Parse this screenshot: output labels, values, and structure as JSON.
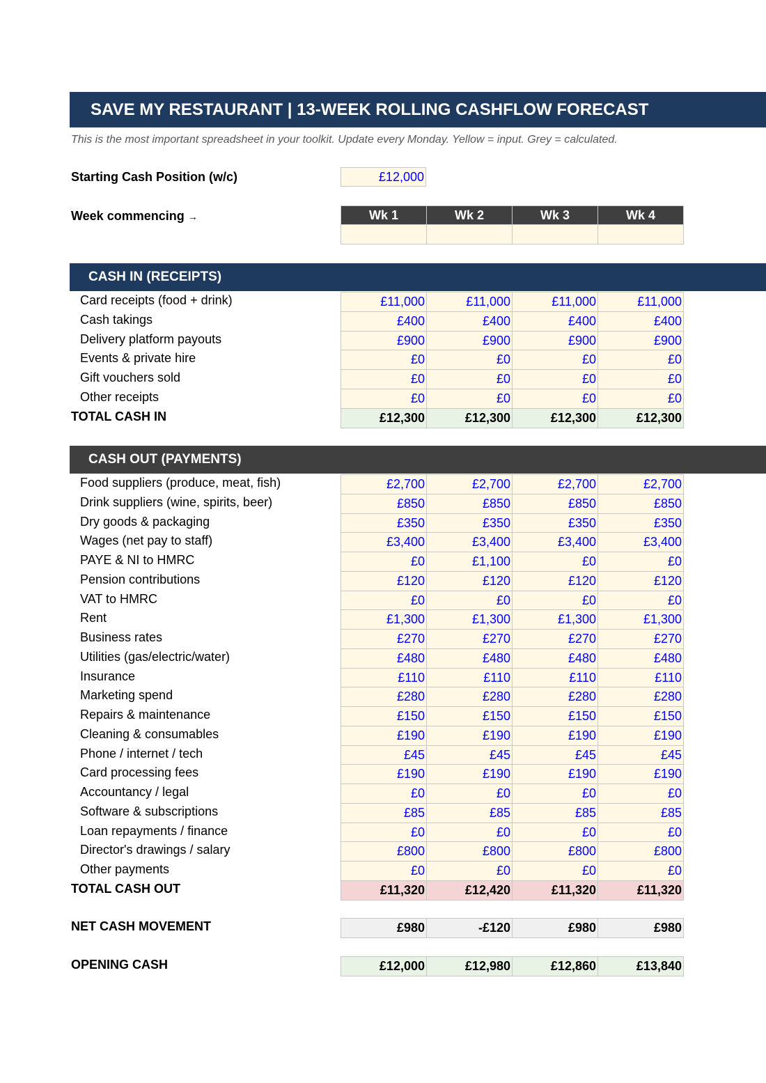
{
  "title": "SAVE MY RESTAURANT  |  13-WEEK ROLLING CASHFLOW FORECAST",
  "subtitle": "This is the most important spreadsheet in your toolkit. Update every Monday. Yellow = input. Grey = calculated.",
  "starting_cash": {
    "label": "Starting Cash Position (w/c)",
    "value": "£12,000"
  },
  "week_commencing": {
    "label": "Week commencing",
    "arrow": "→",
    "weeks": [
      "Wk 1",
      "Wk 2",
      "Wk 3",
      "Wk 4"
    ],
    "dates": [
      "",
      "",
      "",
      ""
    ]
  },
  "colors": {
    "navy": "#1f3a5f",
    "dark_grey": "#3f3f3f",
    "input_yellow": "#fff8e5",
    "input_text": "#0000ff",
    "total_in_green": "#e8f3e6",
    "total_out_red": "#f4d4d4",
    "calc_grey": "#f0f0f0"
  },
  "cash_in": {
    "header": "CASH IN (RECEIPTS)",
    "rows": [
      {
        "label": "Card receipts (food + drink)",
        "values": [
          "£11,000",
          "£11,000",
          "£11,000",
          "£11,000"
        ]
      },
      {
        "label": "Cash takings",
        "values": [
          "£400",
          "£400",
          "£400",
          "£400"
        ]
      },
      {
        "label": "Delivery platform payouts",
        "values": [
          "£900",
          "£900",
          "£900",
          "£900"
        ]
      },
      {
        "label": "Events & private hire",
        "values": [
          "£0",
          "£0",
          "£0",
          "£0"
        ]
      },
      {
        "label": "Gift vouchers sold",
        "values": [
          "£0",
          "£0",
          "£0",
          "£0"
        ]
      },
      {
        "label": "Other receipts",
        "values": [
          "£0",
          "£0",
          "£0",
          "£0"
        ]
      }
    ],
    "total": {
      "label": "TOTAL CASH IN",
      "values": [
        "£12,300",
        "£12,300",
        "£12,300",
        "£12,300"
      ]
    }
  },
  "cash_out": {
    "header": "CASH OUT (PAYMENTS)",
    "rows": [
      {
        "label": "Food suppliers (produce, meat, fish)",
        "values": [
          "£2,700",
          "£2,700",
          "£2,700",
          "£2,700"
        ]
      },
      {
        "label": "Drink suppliers (wine, spirits, beer)",
        "values": [
          "£850",
          "£850",
          "£850",
          "£850"
        ]
      },
      {
        "label": "Dry goods & packaging",
        "values": [
          "£350",
          "£350",
          "£350",
          "£350"
        ]
      },
      {
        "label": "Wages (net pay to staff)",
        "values": [
          "£3,400",
          "£3,400",
          "£3,400",
          "£3,400"
        ]
      },
      {
        "label": "PAYE & NI to HMRC",
        "values": [
          "£0",
          "£1,100",
          "£0",
          "£0"
        ]
      },
      {
        "label": "Pension contributions",
        "values": [
          "£120",
          "£120",
          "£120",
          "£120"
        ]
      },
      {
        "label": "VAT to HMRC",
        "values": [
          "£0",
          "£0",
          "£0",
          "£0"
        ]
      },
      {
        "label": "Rent",
        "values": [
          "£1,300",
          "£1,300",
          "£1,300",
          "£1,300"
        ]
      },
      {
        "label": "Business rates",
        "values": [
          "£270",
          "£270",
          "£270",
          "£270"
        ]
      },
      {
        "label": "Utilities (gas/electric/water)",
        "values": [
          "£480",
          "£480",
          "£480",
          "£480"
        ]
      },
      {
        "label": "Insurance",
        "values": [
          "£110",
          "£110",
          "£110",
          "£110"
        ]
      },
      {
        "label": "Marketing spend",
        "values": [
          "£280",
          "£280",
          "£280",
          "£280"
        ]
      },
      {
        "label": "Repairs & maintenance",
        "values": [
          "£150",
          "£150",
          "£150",
          "£150"
        ]
      },
      {
        "label": "Cleaning & consumables",
        "values": [
          "£190",
          "£190",
          "£190",
          "£190"
        ]
      },
      {
        "label": "Phone / internet / tech",
        "values": [
          "£45",
          "£45",
          "£45",
          "£45"
        ]
      },
      {
        "label": "Card processing fees",
        "values": [
          "£190",
          "£190",
          "£190",
          "£190"
        ]
      },
      {
        "label": "Accountancy / legal",
        "values": [
          "£0",
          "£0",
          "£0",
          "£0"
        ]
      },
      {
        "label": "Software & subscriptions",
        "values": [
          "£85",
          "£85",
          "£85",
          "£85"
        ]
      },
      {
        "label": "Loan repayments / finance",
        "values": [
          "£0",
          "£0",
          "£0",
          "£0"
        ]
      },
      {
        "label": "Director's drawings / salary",
        "values": [
          "£800",
          "£800",
          "£800",
          "£800"
        ]
      },
      {
        "label": "Other payments",
        "values": [
          "£0",
          "£0",
          "£0",
          "£0"
        ]
      }
    ],
    "total": {
      "label": "TOTAL CASH OUT",
      "values": [
        "£11,320",
        "£12,420",
        "£11,320",
        "£11,320"
      ]
    }
  },
  "net_cash_movement": {
    "label": "NET CASH MOVEMENT",
    "values": [
      "£980",
      "-£120",
      "£980",
      "£980"
    ]
  },
  "opening_cash": {
    "label": "OPENING CASH",
    "values": [
      "£12,000",
      "£12,980",
      "£12,860",
      "£13,840"
    ]
  }
}
